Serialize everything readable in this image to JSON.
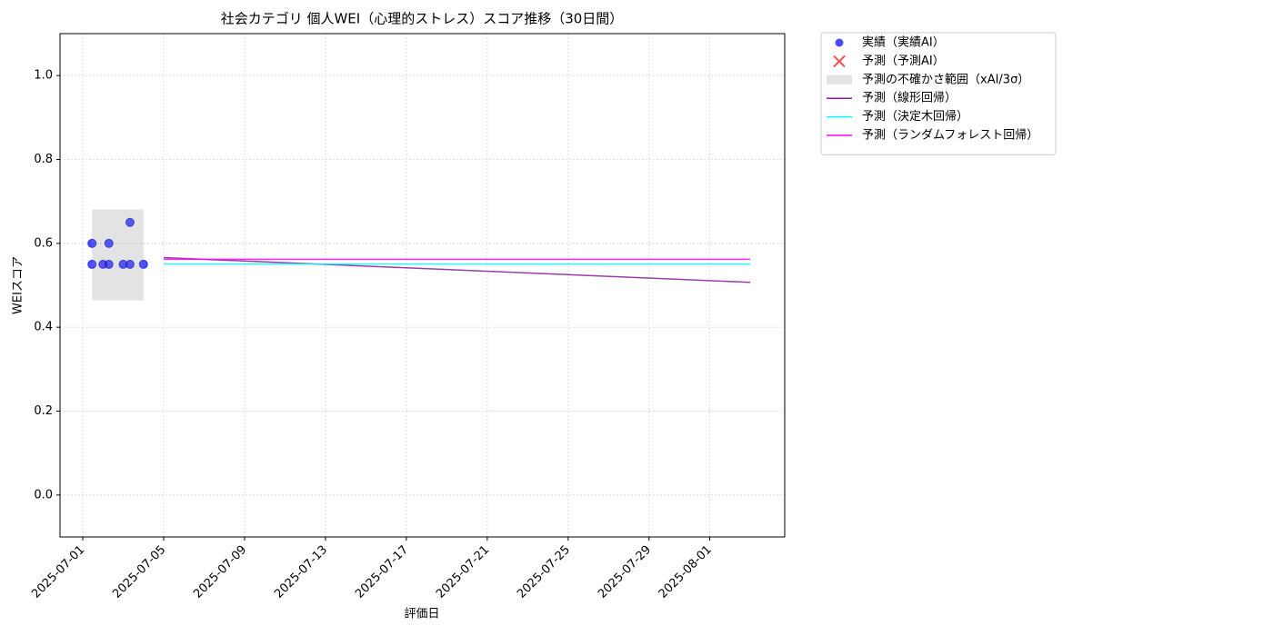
{
  "chart_data": {
    "type": "timeseries",
    "title": "社会カテゴリ 個人WEI（心理的ストレス）スコア推移（30日間）",
    "xlabel": "評価日",
    "ylabel": "WEIスコア",
    "xlim": [
      "2025-06-29T21:00",
      "2025-08-04T17:00"
    ],
    "xticks": [
      "2025-07-01",
      "2025-07-05",
      "2025-07-09",
      "2025-07-13",
      "2025-07-17",
      "2025-07-21",
      "2025-07-25",
      "2025-07-29",
      "2025-08-01"
    ],
    "ylim": [
      -0.1,
      1.1
    ],
    "yticks": [
      {
        "value": 0,
        "label": "0.0"
      },
      0.2,
      0.4,
      0.6,
      0.8,
      {
        "value": 1,
        "label": "1.0"
      }
    ],
    "grid": true,
    "legend": "outside-upper-right",
    "series": [
      {
        "name": "実績（実績AI）",
        "kind": "scatter",
        "color": "#0000ff",
        "x": [
          "2025-07-01T11:00",
          "2025-07-01T11:00",
          "2025-07-02T00:00",
          "2025-07-02T07:00",
          "2025-07-02T07:00",
          "2025-07-03T00:00",
          "2025-07-03T08:00",
          "2025-07-03T08:00",
          "2025-07-04T00:00"
        ],
        "values": [
          0.6,
          0.55,
          0.55,
          0.6,
          0.55,
          0.55,
          0.65,
          0.55,
          0.55
        ]
      },
      {
        "name": "予測（予測AI）",
        "kind": "cross",
        "color": "#ff0000",
        "x": [],
        "values": []
      },
      {
        "name": "予測の不確かさ範囲（xAI/3σ）",
        "kind": "band",
        "color": "#808080",
        "x": [
          "2025-07-01T11:00",
          "2025-07-04T00:00"
        ],
        "lower": [
          0.464,
          0.464
        ],
        "upper": [
          0.681,
          0.681
        ]
      },
      {
        "name": "予測（線形回帰）",
        "kind": "line",
        "color": "#8b1a9a",
        "x": [
          "2025-07-05",
          "2025-08-03"
        ],
        "values": [
          0.566,
          0.507
        ]
      },
      {
        "name": "予測（決定木回帰）",
        "kind": "line",
        "color": "#00ffff",
        "x": [
          "2025-07-05",
          "2025-08-03"
        ],
        "values": [
          0.551,
          0.551
        ]
      },
      {
        "name": "予測（ランダムフォレスト回帰）",
        "kind": "line",
        "color": "#ff00ff",
        "x": [
          "2025-07-05",
          "2025-08-03"
        ],
        "values": [
          0.562,
          0.562
        ]
      }
    ]
  }
}
